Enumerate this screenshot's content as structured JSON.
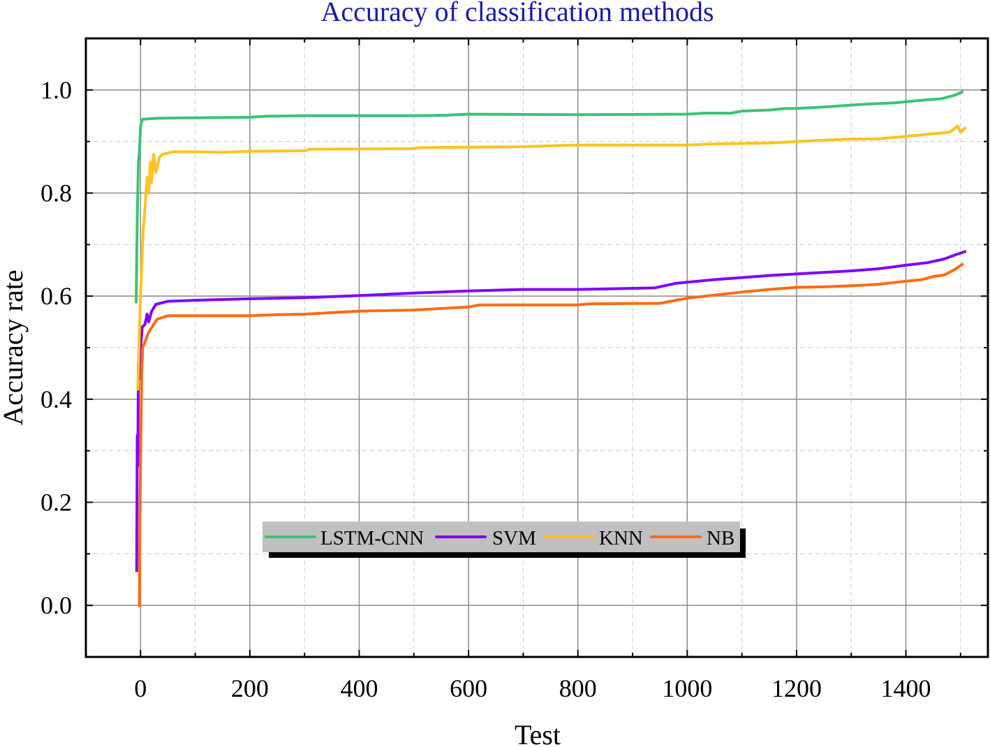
{
  "chart_data": {
    "type": "line",
    "title": "Accuracy of classification methods",
    "xlabel": "Test",
    "ylabel": "Accuracy rate",
    "xlim": [
      -100,
      1550
    ],
    "ylim": [
      -0.1,
      1.1
    ],
    "xticks": [
      0,
      200,
      400,
      600,
      800,
      1000,
      1200,
      1400
    ],
    "xtick_labels": [
      "0",
      "200",
      "400",
      "600",
      "800",
      "1000",
      "1200",
      "1400"
    ],
    "yticks": [
      0.0,
      0.2,
      0.4,
      0.6,
      0.8,
      1.0
    ],
    "ytick_labels": [
      "0.0",
      "0.2",
      "0.4",
      "0.6",
      "0.8",
      "1.0"
    ],
    "grid": true,
    "legend_position": "bottom-center",
    "title_color": "#1a1aa8",
    "series": [
      {
        "name": "LSTM-CNN",
        "color": "#3cc373",
        "x": [
          -8,
          -6,
          -4,
          -2,
          0,
          3,
          30,
          100,
          200,
          230,
          300,
          500,
          560,
          600,
          800,
          1000,
          1030,
          1080,
          1100,
          1150,
          1180,
          1200,
          1250,
          1320,
          1380,
          1420,
          1465,
          1490,
          1505
        ],
        "y": [
          0.586,
          0.75,
          0.86,
          0.88,
          0.93,
          0.943,
          0.945,
          0.946,
          0.947,
          0.949,
          0.95,
          0.95,
          0.951,
          0.953,
          0.952,
          0.953,
          0.955,
          0.955,
          0.959,
          0.961,
          0.964,
          0.964,
          0.967,
          0.972,
          0.975,
          0.979,
          0.983,
          0.99,
          0.997
        ]
      },
      {
        "name": "SVM",
        "color": "#8000ff",
        "x": [
          -7,
          -6,
          -5,
          -4,
          -2,
          0,
          3,
          8,
          12,
          15,
          20,
          28,
          50,
          100,
          200,
          300,
          400,
          500,
          600,
          700,
          800,
          940,
          980,
          1050,
          1100,
          1150,
          1200,
          1300,
          1350,
          1400,
          1440,
          1470,
          1490,
          1510
        ],
        "y": [
          0.065,
          0.33,
          0.27,
          0.47,
          0.44,
          0.5,
          0.54,
          0.545,
          0.565,
          0.55,
          0.57,
          0.584,
          0.59,
          0.592,
          0.595,
          0.597,
          0.601,
          0.606,
          0.61,
          0.613,
          0.613,
          0.616,
          0.625,
          0.632,
          0.636,
          0.64,
          0.643,
          0.649,
          0.653,
          0.66,
          0.665,
          0.672,
          0.68,
          0.687
        ]
      },
      {
        "name": "KNN",
        "color": "#ffc21e",
        "x": [
          -5,
          -3,
          0,
          5,
          8,
          12,
          15,
          18,
          20,
          24,
          28,
          35,
          40,
          60,
          100,
          150,
          200,
          300,
          310,
          500,
          510,
          700,
          760,
          800,
          1000,
          1040,
          1150,
          1200,
          1300,
          1350,
          1400,
          1480,
          1495,
          1500,
          1510
        ],
        "y": [
          0.417,
          0.5,
          0.6,
          0.73,
          0.77,
          0.83,
          0.8,
          0.86,
          0.82,
          0.875,
          0.84,
          0.87,
          0.875,
          0.88,
          0.88,
          0.879,
          0.881,
          0.882,
          0.885,
          0.886,
          0.888,
          0.89,
          0.892,
          0.893,
          0.893,
          0.895,
          0.897,
          0.9,
          0.905,
          0.905,
          0.91,
          0.918,
          0.93,
          0.918,
          0.928
        ]
      },
      {
        "name": "NB",
        "color": "#ff6a10",
        "x": [
          -2,
          -1,
          0,
          2,
          4,
          15,
          30,
          50,
          200,
          250,
          300,
          400,
          500,
          600,
          620,
          800,
          820,
          950,
          1000,
          1100,
          1150,
          1200,
          1250,
          1300,
          1350,
          1400,
          1430,
          1450,
          1470,
          1490,
          1505
        ],
        "y": [
          -0.003,
          0.2,
          0.28,
          0.45,
          0.5,
          0.53,
          0.555,
          0.562,
          0.562,
          0.564,
          0.565,
          0.571,
          0.573,
          0.579,
          0.583,
          0.583,
          0.585,
          0.586,
          0.596,
          0.608,
          0.613,
          0.617,
          0.618,
          0.62,
          0.623,
          0.629,
          0.632,
          0.638,
          0.641,
          0.652,
          0.663
        ]
      }
    ]
  }
}
